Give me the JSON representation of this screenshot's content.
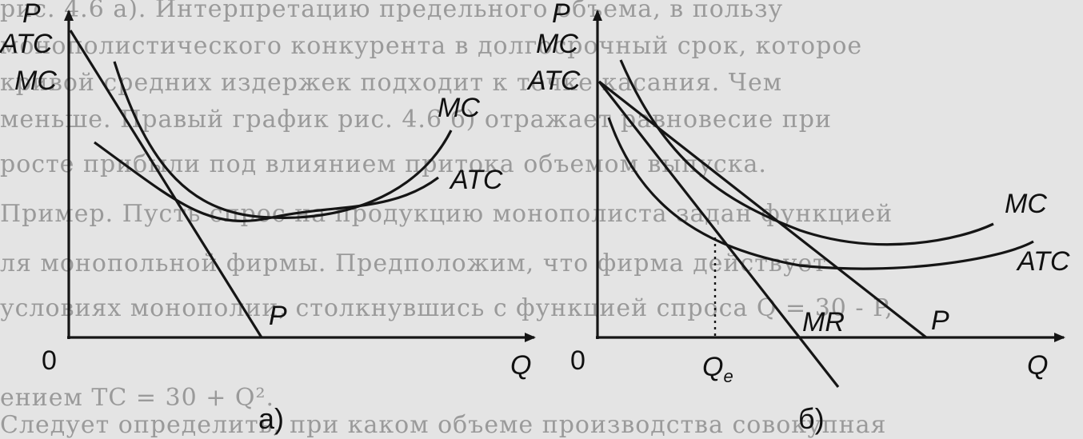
{
  "background_text": [
    "рис. 4.6 а). Интерпретацию предельного объема, в пользу",
    "монополистического конкурента в долгосрочный срок, которое",
    "кривой средних издержек подходит к точке касания. Чем",
    "меньше. Правый график рис. 4.6 б) отражает равновесие при",
    "росте прибыли под влиянием притока объемом выпуска.",
    "Пример. Пусть спрос на продукцию монополиста задан функцией",
    "ля монопольной фирмы. Предположим, что фирма действует",
    "условиях монополии, столкнувшись с функцией спроса Q = 30 - P,",
    "ением TC = 30 + Q².",
    "Следует определить, при каком объеме производства совокупная"
  ],
  "panel_a": {
    "axis_p": "P",
    "axis_q": "Q",
    "origin": "0",
    "label_atc_left": "ATC",
    "label_mc_left": "MC",
    "label_mc_curve": "MC",
    "label_atc_curve": "ATC",
    "label_demand": "P",
    "caption": "а)"
  },
  "panel_b": {
    "axis_p": "P",
    "axis_q": "Q",
    "origin": "0",
    "label_mc_left": "MC",
    "label_atc_left": "ATC",
    "label_mc_curve": "MC",
    "label_atc_curve": "ATC",
    "label_mr": "MR",
    "label_demand": "P",
    "label_qe_main": "Q",
    "label_qe_sub": "e",
    "caption": "б)"
  }
}
